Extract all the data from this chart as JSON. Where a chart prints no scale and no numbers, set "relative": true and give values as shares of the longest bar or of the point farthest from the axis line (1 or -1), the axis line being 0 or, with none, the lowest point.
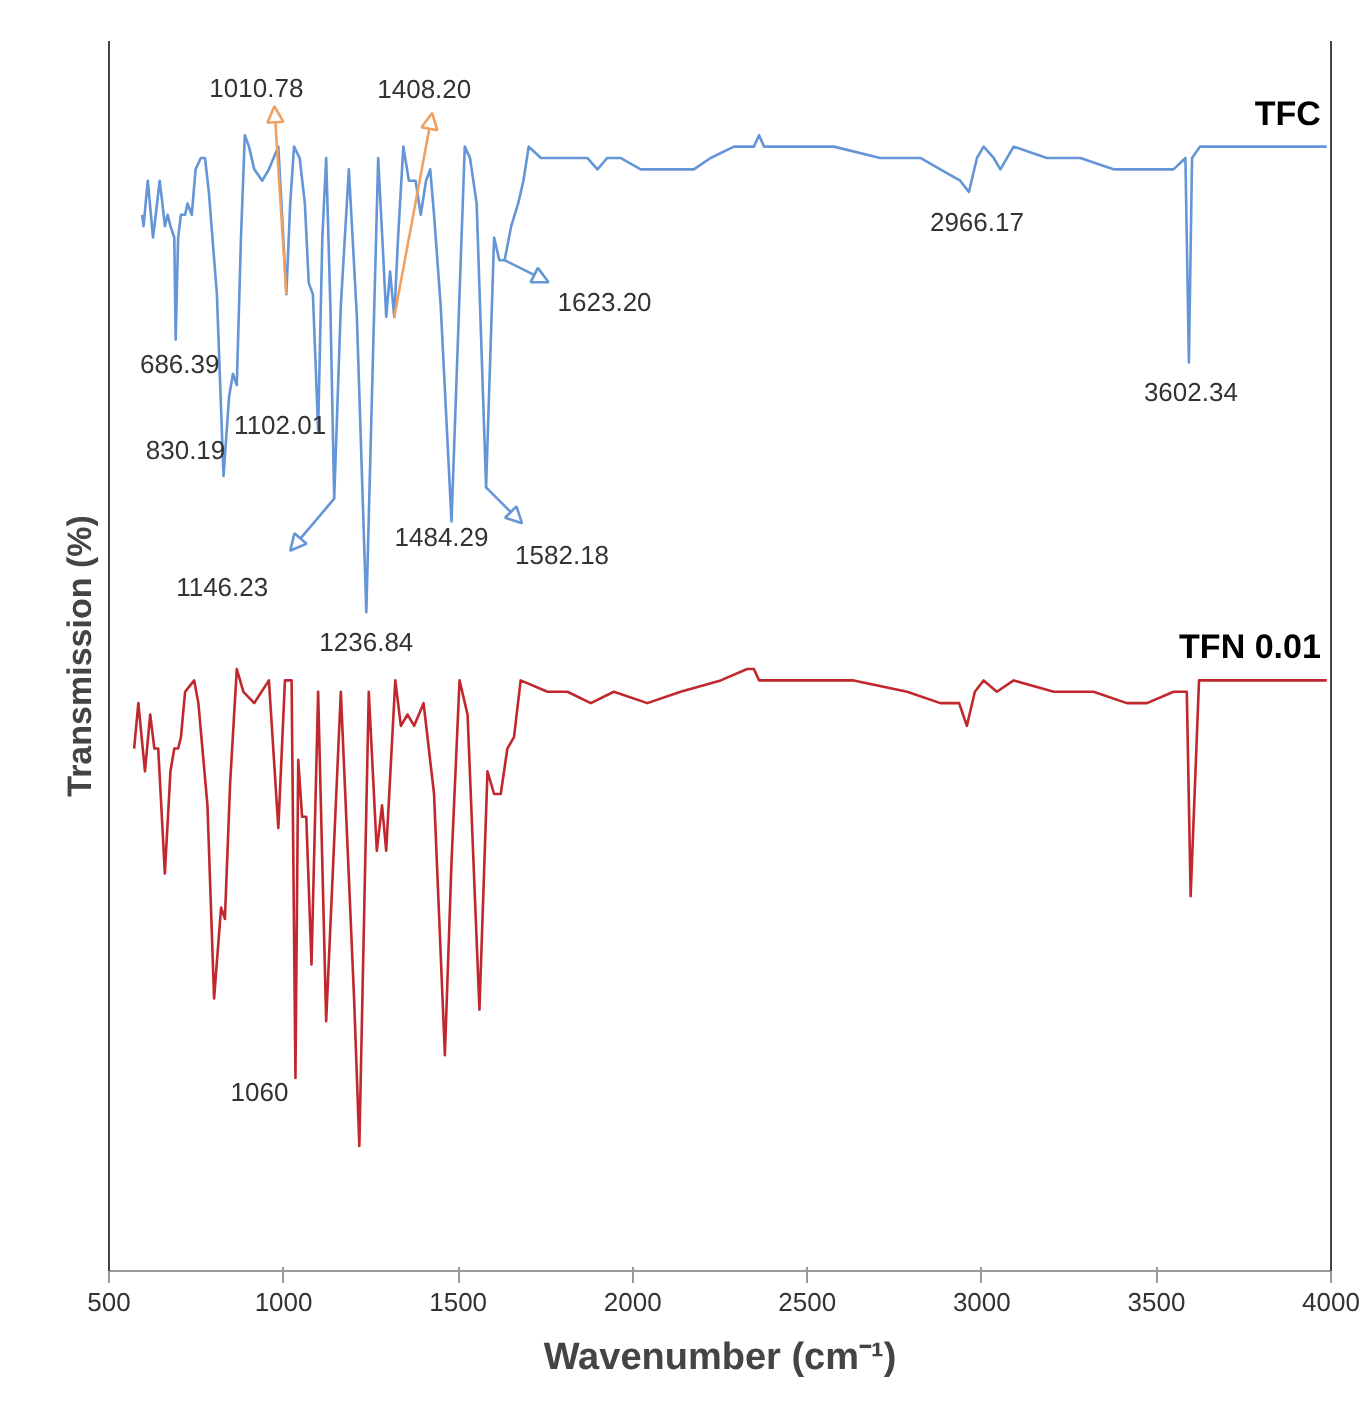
{
  "chart_data": {
    "type": "line",
    "xlabel": "Wavenumber (cm⁻¹)",
    "ylabel": "Transmission (%)",
    "relative": true,
    "xlim": [
      500,
      4000
    ],
    "xticks": [
      500,
      1000,
      1500,
      2000,
      2500,
      3000,
      3500,
      4000
    ],
    "series": [
      {
        "name": "TFC",
        "color": "#6495d6",
        "x": [
          595,
          599,
          611,
          626,
          634,
          645,
          653,
          660,
          668,
          676,
          687,
          691,
          698,
          706,
          718,
          725,
          737,
          748,
          763,
          775,
          786,
          809,
          828,
          844,
          855,
          866,
          878,
          889,
          901,
          916,
          939,
          958,
          985,
          1008,
          1019,
          1030,
          1046,
          1061,
          1072,
          1084,
          1099,
          1111,
          1122,
          1134,
          1145,
          1164,
          1187,
          1210,
          1237,
          1259,
          1271,
          1286,
          1294,
          1305,
          1317,
          1328,
          1343,
          1359,
          1378,
          1393,
          1408,
          1420,
          1431,
          1450,
          1481,
          1504,
          1519,
          1534,
          1553,
          1580,
          1603,
          1618,
          1633,
          1652,
          1672,
          1687,
          1702,
          1737,
          1775,
          1813,
          1870,
          1899,
          1927,
          1965,
          2023,
          2089,
          2156,
          2175,
          2223,
          2290,
          2347,
          2362,
          2376,
          2461,
          2576,
          2709,
          2824,
          2881,
          2938,
          2963,
          2986,
          3005,
          3034,
          3053,
          3091,
          3186,
          3282,
          3377,
          3444,
          3549,
          3583,
          3593,
          3602,
          3625,
          3759,
          3988
        ],
        "values": [
          0.93,
          0.92,
          0.96,
          0.91,
          0.93,
          0.96,
          0.94,
          0.92,
          0.93,
          0.92,
          0.91,
          0.82,
          0.91,
          0.93,
          0.93,
          0.94,
          0.93,
          0.97,
          0.98,
          0.98,
          0.95,
          0.86,
          0.7,
          0.77,
          0.79,
          0.78,
          0.91,
          1.0,
          0.99,
          0.97,
          0.96,
          0.97,
          0.99,
          0.86,
          0.94,
          0.99,
          0.98,
          0.94,
          0.87,
          0.86,
          0.74,
          0.91,
          0.98,
          0.85,
          0.68,
          0.85,
          0.97,
          0.84,
          0.58,
          0.84,
          0.98,
          0.89,
          0.84,
          0.88,
          0.84,
          0.91,
          0.99,
          0.96,
          0.96,
          0.93,
          0.96,
          0.97,
          0.93,
          0.85,
          0.66,
          0.86,
          0.99,
          0.98,
          0.94,
          0.69,
          0.91,
          0.89,
          0.89,
          0.92,
          0.94,
          0.96,
          0.99,
          0.98,
          0.98,
          0.98,
          0.98,
          0.97,
          0.98,
          0.98,
          0.97,
          0.97,
          0.97,
          0.97,
          0.98,
          0.99,
          0.99,
          1.0,
          0.99,
          0.99,
          0.99,
          0.98,
          0.98,
          0.97,
          0.96,
          0.95,
          0.98,
          0.99,
          0.98,
          0.97,
          0.99,
          0.98,
          0.98,
          0.97,
          0.97,
          0.97,
          0.98,
          0.8,
          0.98,
          0.99,
          0.99,
          0.99
        ]
      },
      {
        "name": "TFN 0.01",
        "color": "#c0282d",
        "x": [
          572,
          584,
          603,
          618,
          630,
          641,
          660,
          676,
          687,
          698,
          706,
          718,
          744,
          756,
          782,
          801,
          821,
          832,
          847,
          866,
          885,
          916,
          958,
          985,
          1004,
          1023,
          1034,
          1042,
          1053,
          1065,
          1080,
          1099,
          1122,
          1164,
          1202,
          1217,
          1244,
          1267,
          1282,
          1294,
          1320,
          1336,
          1355,
          1374,
          1401,
          1431,
          1462,
          1481,
          1504,
          1527,
          1561,
          1584,
          1603,
          1622,
          1641,
          1660,
          1679,
          1756,
          1813,
          1880,
          1946,
          2042,
          2137,
          2252,
          2328,
          2347,
          2362,
          2461,
          2633,
          2786,
          2881,
          2935,
          2957,
          2980,
          3005,
          3043,
          3091,
          3206,
          3320,
          3415,
          3473,
          3549,
          3587,
          3598,
          3622,
          3721,
          3988
        ],
        "values": [
          0.46,
          0.5,
          0.44,
          0.49,
          0.46,
          0.46,
          0.35,
          0.44,
          0.46,
          0.46,
          0.47,
          0.51,
          0.52,
          0.5,
          0.41,
          0.24,
          0.32,
          0.31,
          0.43,
          0.53,
          0.51,
          0.5,
          0.52,
          0.39,
          0.52,
          0.52,
          0.17,
          0.45,
          0.4,
          0.4,
          0.27,
          0.51,
          0.22,
          0.51,
          0.24,
          0.11,
          0.51,
          0.37,
          0.41,
          0.37,
          0.52,
          0.48,
          0.49,
          0.48,
          0.5,
          0.42,
          0.19,
          0.36,
          0.52,
          0.49,
          0.23,
          0.44,
          0.42,
          0.42,
          0.46,
          0.47,
          0.52,
          0.51,
          0.51,
          0.5,
          0.51,
          0.5,
          0.51,
          0.52,
          0.53,
          0.53,
          0.52,
          0.52,
          0.52,
          0.51,
          0.5,
          0.5,
          0.48,
          0.51,
          0.52,
          0.51,
          0.52,
          0.51,
          0.51,
          0.5,
          0.5,
          0.51,
          0.51,
          0.33,
          0.52,
          0.52,
          0.52
        ]
      }
    ],
    "annotations": [
      {
        "text": "686.39",
        "x": 691,
        "y": 0.82
      },
      {
        "text": "830.19",
        "x": 828,
        "y": 0.7
      },
      {
        "text": "1010.78",
        "x": 1008,
        "y": 0.86
      },
      {
        "text": "1102.01",
        "x": 1099,
        "y": 0.74
      },
      {
        "text": "1146.23",
        "x": 1145,
        "y": 0.68
      },
      {
        "text": "1236.84",
        "x": 1237,
        "y": 0.58
      },
      {
        "text": "1408.20",
        "x": 1317,
        "y": 0.84
      },
      {
        "text": "1484.29",
        "x": 1481,
        "y": 0.66
      },
      {
        "text": "1582.18",
        "x": 1580,
        "y": 0.69
      },
      {
        "text": "1623.20",
        "x": 1633,
        "y": 0.89
      },
      {
        "text": "2966.17",
        "x": 2963,
        "y": 0.95
      },
      {
        "text": "3602.34",
        "x": 3593,
        "y": 0.8
      },
      {
        "text": "1060",
        "x": 1034,
        "y": 0.17
      }
    ]
  }
}
